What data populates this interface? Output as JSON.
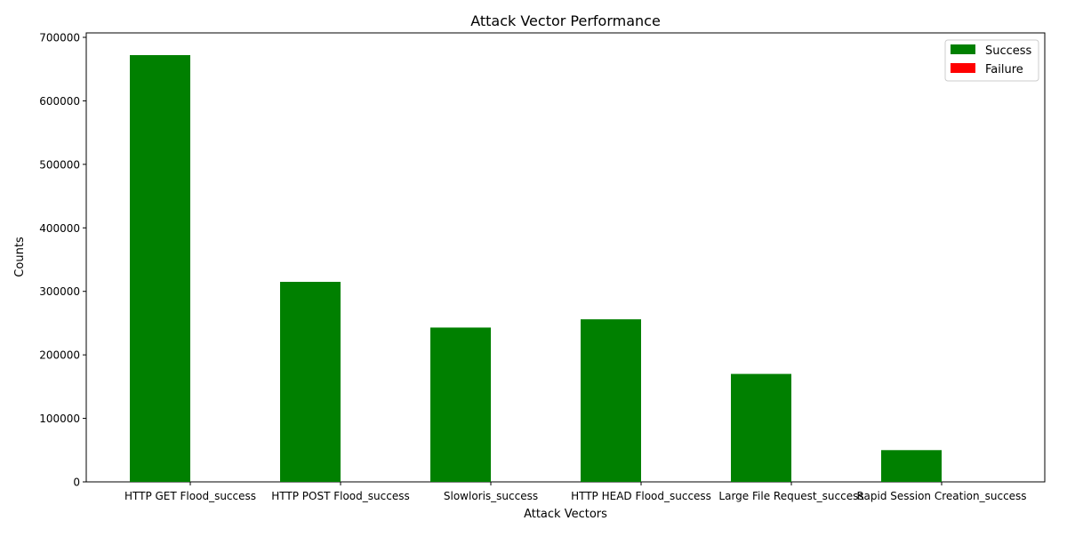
{
  "chart_data": {
    "type": "bar",
    "title": "Attack Vector Performance",
    "xlabel": "Attack Vectors",
    "ylabel": "Counts",
    "categories": [
      "HTTP GET Flood_success",
      "HTTP POST Flood_success",
      "Slowloris_success",
      "HTTP HEAD Flood_success",
      "Large File Request_success",
      "Rapid Session Creation_success"
    ],
    "series": [
      {
        "name": "Success",
        "color": "#008000",
        "values": [
          672000,
          315000,
          243000,
          256000,
          170000,
          50000
        ]
      },
      {
        "name": "Failure",
        "color": "#ff0000",
        "values": [
          0,
          0,
          0,
          0,
          0,
          0
        ]
      }
    ],
    "ylim": [
      0,
      707000
    ],
    "yticks": [
      0,
      100000,
      200000,
      300000,
      400000,
      500000,
      600000,
      700000
    ],
    "grid": false,
    "legend_position": "top-right"
  }
}
